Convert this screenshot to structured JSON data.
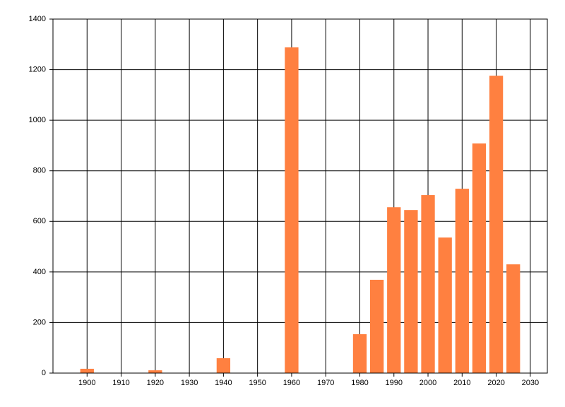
{
  "chart_data": {
    "type": "bar",
    "x": [
      1900,
      1920,
      1940,
      1960,
      1980,
      1985,
      1990,
      1995,
      2000,
      2005,
      2010,
      2015,
      2020,
      2025
    ],
    "values": [
      17,
      11,
      59,
      1288,
      154,
      369,
      656,
      645,
      704,
      536,
      729,
      908,
      1176,
      430
    ],
    "color": "#ff8040",
    "xlim": [
      1890,
      2035
    ],
    "xticks": [
      1900,
      1910,
      1920,
      1930,
      1940,
      1950,
      1960,
      1970,
      1980,
      1990,
      2000,
      2010,
      2020,
      2030
    ],
    "ylim": [
      0,
      1400
    ],
    "yticks": [
      0,
      200,
      400,
      600,
      800,
      1000,
      1200,
      1400
    ],
    "grid": true
  }
}
